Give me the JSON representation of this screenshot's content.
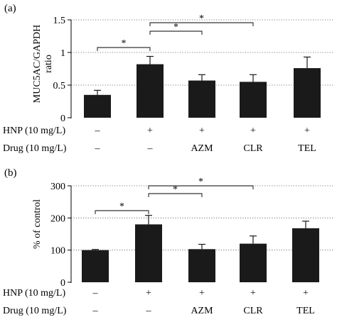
{
  "charts": [
    {
      "panel_label": "(a)",
      "ylabel": "MUC5AC/GAPDH ratio",
      "ylabel_lines": [
        "MUC5AC/GAPDH",
        "ratio"
      ],
      "yticks": [
        "0",
        "0.5",
        "1",
        "1.5"
      ],
      "hnp_row": [
        "–",
        "+",
        "+",
        "+",
        "+"
      ],
      "drug_row": [
        "–",
        "–",
        "AZM",
        "CLR",
        "TEL"
      ],
      "sig_marks": [
        "*",
        "*",
        "*"
      ]
    },
    {
      "panel_label": "(b)",
      "ylabel": "% of control",
      "yticks": [
        "0",
        "100",
        "200",
        "300"
      ],
      "hnp_row": [
        "–",
        "+",
        "+",
        "+",
        "+"
      ],
      "drug_row": [
        "–",
        "–",
        "AZM",
        "CLR",
        "TEL"
      ],
      "sig_marks": [
        "*",
        "*",
        "*"
      ]
    }
  ],
  "row_labels": {
    "hnp": "HNP (10 mg/L)",
    "drug": "Drug (10 mg/L)"
  },
  "colors": {
    "bar": "#1a1a1a",
    "axis": "#000000",
    "gridline": "#555555"
  },
  "chart_data": [
    {
      "type": "bar",
      "title": "(a)",
      "xlabel": "",
      "ylabel": "MUC5AC/GAPDH ratio",
      "ylim": [
        0,
        1.5
      ],
      "yticks": [
        0,
        0.5,
        1,
        1.5
      ],
      "grid": "dotted horizontal lines at major ticks",
      "categories": [
        "HNP – / Drug –",
        "HNP + / Drug –",
        "HNP + / AZM",
        "HNP + / CLR",
        "HNP + / TEL"
      ],
      "values": [
        0.35,
        0.82,
        0.57,
        0.55,
        0.76
      ],
      "error": [
        0.07,
        0.12,
        0.09,
        0.11,
        0.17
      ],
      "significance": [
        {
          "from": 0,
          "to": 1,
          "label": "*"
        },
        {
          "from": 1,
          "to": 2,
          "label": "*"
        },
        {
          "from": 1,
          "to": 3,
          "label": "*"
        }
      ]
    },
    {
      "type": "bar",
      "title": "(b)",
      "xlabel": "",
      "ylabel": "% of control",
      "ylim": [
        0,
        300
      ],
      "yticks": [
        0,
        100,
        200,
        300
      ],
      "grid": "dotted horizontal lines at major ticks",
      "categories": [
        "HNP – / Drug –",
        "HNP + / Drug –",
        "HNP + / AZM",
        "HNP + / CLR",
        "HNP + / TEL"
      ],
      "values": [
        100,
        180,
        103,
        120,
        168
      ],
      "error": [
        2,
        28,
        15,
        24,
        22
      ],
      "significance": [
        {
          "from": 0,
          "to": 1,
          "label": "*"
        },
        {
          "from": 1,
          "to": 2,
          "label": "*"
        },
        {
          "from": 1,
          "to": 3,
          "label": "*"
        }
      ]
    }
  ]
}
